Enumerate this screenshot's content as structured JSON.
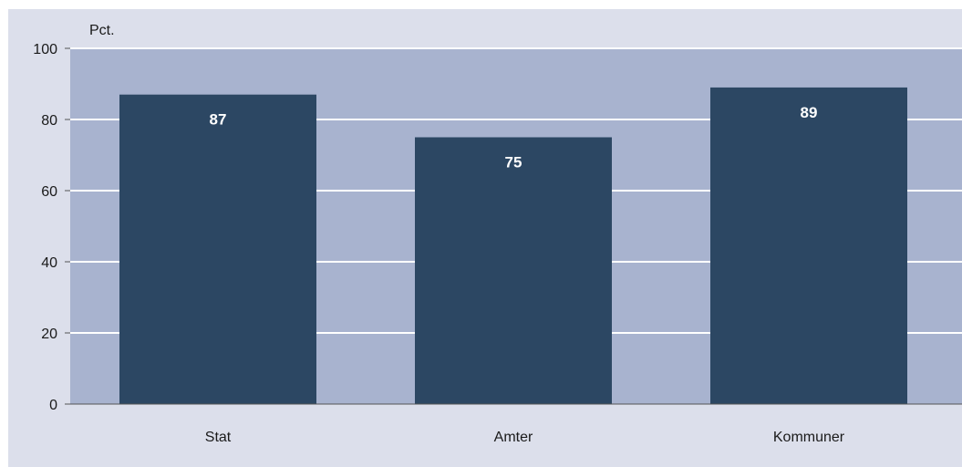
{
  "chart_data": {
    "type": "bar",
    "unit_label": "Pct.",
    "categories": [
      "Stat",
      "Amter",
      "Kommuner"
    ],
    "values": [
      87,
      75,
      89
    ],
    "data_labels": [
      "87",
      "75",
      "89"
    ],
    "ylim": [
      0,
      100
    ],
    "yticks": [
      0,
      20,
      40,
      60,
      80,
      100
    ],
    "grid": true,
    "legend": "none",
    "colors": {
      "outer_background": "#dcdfeb",
      "plot_background": "#a8b3cf",
      "bar": "#2c4763",
      "gridline": "#ffffff",
      "axis": "#555555"
    }
  }
}
